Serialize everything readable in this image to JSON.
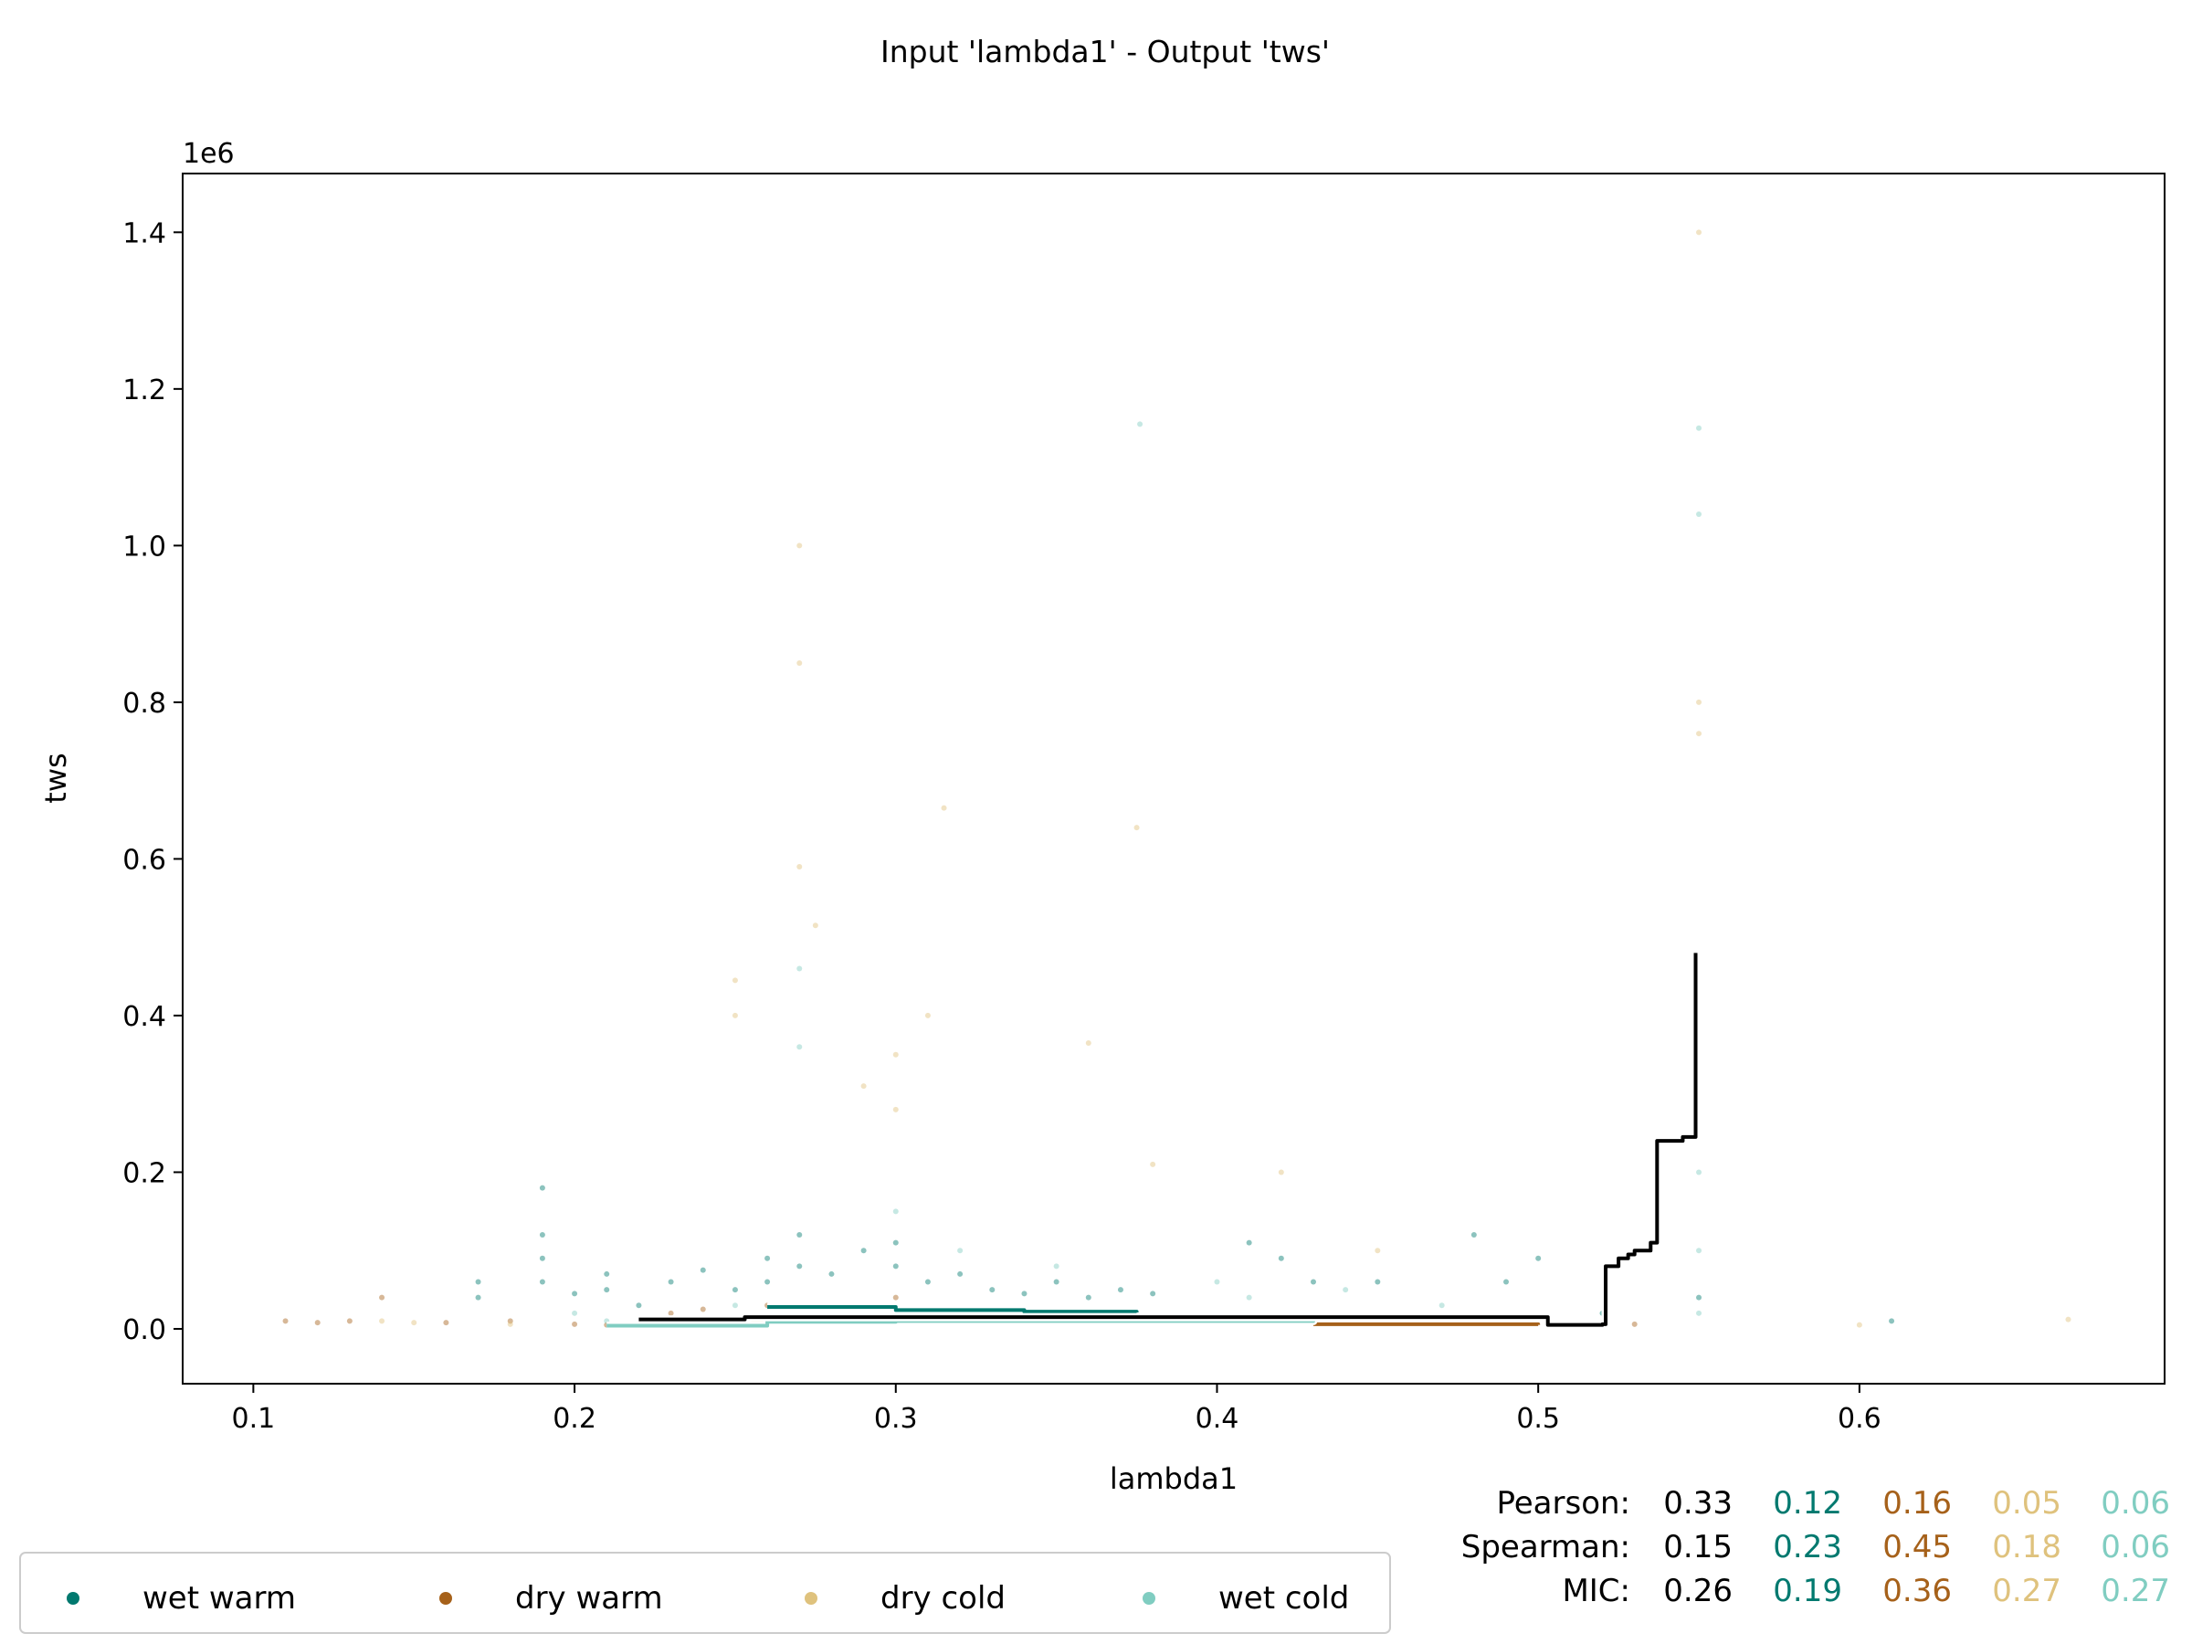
{
  "chart_data": {
    "type": "scatter",
    "title": "Input 'lambda1' - Output 'tws'",
    "xlabel": "lambda1",
    "ylabel": "tws",
    "y_scale_label": "1e6",
    "xlim": [
      0.078,
      0.695
    ],
    "ylim": [
      -70000,
      1475000
    ],
    "x_ticks": [
      0.1,
      0.2,
      0.3,
      0.4,
      0.5,
      0.6
    ],
    "x_tick_labels": [
      "0.1",
      "0.2",
      "0.3",
      "0.4",
      "0.5",
      "0.6"
    ],
    "y_ticks": [
      0,
      200000,
      400000,
      600000,
      800000,
      1000000,
      1200000,
      1400000
    ],
    "y_tick_labels": [
      "0.0",
      "0.2",
      "0.4",
      "0.6",
      "0.8",
      "1.0",
      "1.2",
      "1.4"
    ],
    "grid": false,
    "legend": {
      "placement": "bottom-left, below axes",
      "entries": [
        "wet warm",
        "dry warm",
        "dry cold",
        "wet cold"
      ]
    },
    "series": [
      {
        "name": "wet warm",
        "color": "#01796f",
        "points": [
          [
            0.17,
            60000
          ],
          [
            0.17,
            40000
          ],
          [
            0.19,
            180000
          ],
          [
            0.19,
            120000
          ],
          [
            0.19,
            90000
          ],
          [
            0.19,
            60000
          ],
          [
            0.2,
            45000
          ],
          [
            0.21,
            70000
          ],
          [
            0.21,
            50000
          ],
          [
            0.22,
            30000
          ],
          [
            0.23,
            60000
          ],
          [
            0.24,
            75000
          ],
          [
            0.25,
            50000
          ],
          [
            0.26,
            90000
          ],
          [
            0.26,
            60000
          ],
          [
            0.27,
            120000
          ],
          [
            0.27,
            80000
          ],
          [
            0.28,
            70000
          ],
          [
            0.29,
            100000
          ],
          [
            0.3,
            110000
          ],
          [
            0.3,
            80000
          ],
          [
            0.31,
            60000
          ],
          [
            0.32,
            70000
          ],
          [
            0.33,
            50000
          ],
          [
            0.34,
            45000
          ],
          [
            0.35,
            60000
          ],
          [
            0.36,
            40000
          ],
          [
            0.37,
            50000
          ],
          [
            0.38,
            45000
          ],
          [
            0.41,
            110000
          ],
          [
            0.42,
            90000
          ],
          [
            0.43,
            60000
          ],
          [
            0.45,
            60000
          ],
          [
            0.48,
            120000
          ],
          [
            0.49,
            60000
          ],
          [
            0.5,
            90000
          ],
          [
            0.52,
            20000
          ],
          [
            0.55,
            40000
          ],
          [
            0.61,
            10000
          ]
        ],
        "curve": [
          [
            0.26,
            28000
          ],
          [
            0.3,
            24000
          ],
          [
            0.34,
            22000
          ],
          [
            0.375,
            21000
          ]
        ]
      },
      {
        "name": "dry warm",
        "color": "#a6611a",
        "points": [
          [
            0.11,
            10000
          ],
          [
            0.12,
            8000
          ],
          [
            0.13,
            10000
          ],
          [
            0.14,
            40000
          ],
          [
            0.16,
            8000
          ],
          [
            0.18,
            10000
          ],
          [
            0.2,
            6000
          ],
          [
            0.21,
            5000
          ],
          [
            0.23,
            20000
          ],
          [
            0.24,
            25000
          ],
          [
            0.26,
            30000
          ],
          [
            0.3,
            40000
          ],
          [
            0.33,
            20000
          ],
          [
            0.36,
            15000
          ],
          [
            0.38,
            15000
          ],
          [
            0.45,
            10000
          ],
          [
            0.52,
            8000
          ],
          [
            0.53,
            6000
          ]
        ],
        "curve": [
          [
            0.43,
            6000
          ],
          [
            0.5,
            5000
          ]
        ]
      },
      {
        "name": "dry cold",
        "color": "#dfc27d",
        "points": [
          [
            0.14,
            10000
          ],
          [
            0.15,
            8000
          ],
          [
            0.18,
            6000
          ],
          [
            0.25,
            445000
          ],
          [
            0.25,
            400000
          ],
          [
            0.27,
            1000000
          ],
          [
            0.27,
            850000
          ],
          [
            0.27,
            590000
          ],
          [
            0.275,
            515000
          ],
          [
            0.29,
            310000
          ],
          [
            0.3,
            350000
          ],
          [
            0.3,
            280000
          ],
          [
            0.31,
            400000
          ],
          [
            0.315,
            665000
          ],
          [
            0.36,
            365000
          ],
          [
            0.375,
            640000
          ],
          [
            0.38,
            210000
          ],
          [
            0.42,
            200000
          ],
          [
            0.45,
            100000
          ],
          [
            0.55,
            1400000
          ],
          [
            0.55,
            800000
          ],
          [
            0.55,
            760000
          ],
          [
            0.6,
            5000
          ],
          [
            0.665,
            12000
          ]
        ],
        "curve": [
          [
            0.255,
            12000
          ],
          [
            0.26,
            10000
          ]
        ]
      },
      {
        "name": "wet cold",
        "color": "#80cdc1",
        "points": [
          [
            0.2,
            20000
          ],
          [
            0.21,
            10000
          ],
          [
            0.22,
            5000
          ],
          [
            0.25,
            30000
          ],
          [
            0.27,
            460000
          ],
          [
            0.27,
            360000
          ],
          [
            0.3,
            150000
          ],
          [
            0.32,
            100000
          ],
          [
            0.35,
            80000
          ],
          [
            0.376,
            1155000
          ],
          [
            0.4,
            60000
          ],
          [
            0.41,
            40000
          ],
          [
            0.44,
            50000
          ],
          [
            0.47,
            30000
          ],
          [
            0.52,
            20000
          ],
          [
            0.55,
            1150000
          ],
          [
            0.55,
            1040000
          ],
          [
            0.55,
            200000
          ],
          [
            0.55,
            100000
          ],
          [
            0.55,
            20000
          ]
        ],
        "curve": [
          [
            0.21,
            4000
          ],
          [
            0.255,
            4000
          ],
          [
            0.26,
            9000
          ],
          [
            0.3,
            10000
          ],
          [
            0.35,
            10000
          ],
          [
            0.4,
            10000
          ],
          [
            0.43,
            11000
          ]
        ]
      },
      {
        "name": "",
        "color": "#000000",
        "curve": [
          [
            0.22,
            12000
          ],
          [
            0.253,
            15000
          ],
          [
            0.503,
            5000
          ],
          [
            0.52,
            6000
          ],
          [
            0.521,
            80000
          ],
          [
            0.525,
            90000
          ],
          [
            0.528,
            95000
          ],
          [
            0.53,
            100000
          ],
          [
            0.535,
            110000
          ],
          [
            0.537,
            240000
          ],
          [
            0.545,
            245000
          ],
          [
            0.549,
            250000
          ],
          [
            0.549,
            480000
          ]
        ]
      }
    ],
    "stats": {
      "rows": [
        {
          "label": "Pearson:",
          "values": [
            "0.33",
            "0.12",
            "0.16",
            "0.05",
            "0.06"
          ]
        },
        {
          "label": "Spearman:",
          "values": [
            "0.15",
            "0.23",
            "0.45",
            "0.18",
            "0.06"
          ]
        },
        {
          "label": "MIC:",
          "values": [
            "0.26",
            "0.19",
            "0.36",
            "0.27",
            "0.27"
          ]
        }
      ],
      "colors": [
        "#000000",
        "#01796f",
        "#a6611a",
        "#dfc27d",
        "#80cdc1"
      ]
    }
  }
}
